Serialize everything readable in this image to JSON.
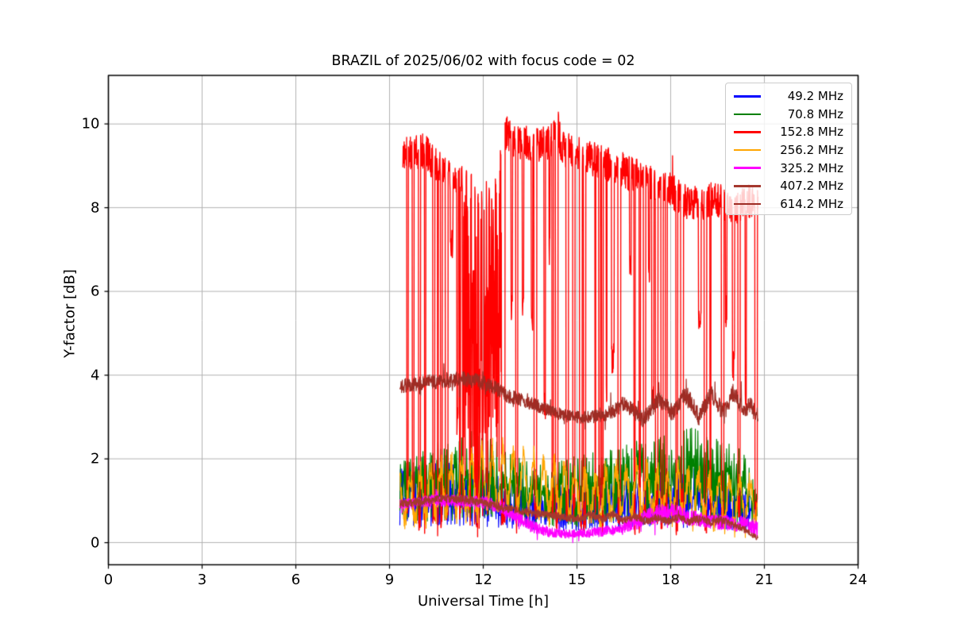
{
  "title": "BRAZIL of 2025/06/02 with focus code = 02",
  "axes": {
    "xlabel": "Universal Time [h]",
    "ylabel": "Y-factor [dB]",
    "xlim": [
      0,
      24
    ],
    "ylim": [
      -0.53,
      11.16
    ],
    "xticks": [
      0,
      3,
      6,
      9,
      12,
      15,
      18,
      21,
      24
    ],
    "yticks": [
      0,
      2,
      4,
      6,
      8,
      10
    ],
    "grid": true,
    "grid_color": "#b2b2b2"
  },
  "legend": {
    "position": "upper right",
    "entries": [
      {
        "label": "49.2 MHz",
        "color": "#0000FF"
      },
      {
        "label": "70.8 MHz",
        "color": "#008000"
      },
      {
        "label": "152.8 MHz",
        "color": "#FF0000"
      },
      {
        "label": "256.2 MHz",
        "color": "#FFA500"
      },
      {
        "label": "325.2 MHz",
        "color": "#FF00FF"
      },
      {
        "label": "407.2 MHz",
        "color": "#A5382E"
      },
      {
        "label": "614.2 MHz",
        "color": "#9E2C24"
      }
    ]
  },
  "chart_data": {
    "type": "line",
    "title": "BRAZIL of 2025/06/02 with focus code = 02",
    "xlabel": "Universal Time [h]",
    "ylabel": "Y-factor [dB]",
    "x_units": "hours UT",
    "data_time_range": [
      9.33,
      20.8
    ],
    "series": [
      {
        "name": "49.2 MHz",
        "color": "#0000FF",
        "style": "spiky",
        "t0": 9.33,
        "t1": 20.75,
        "envelope": {
          "t": [
            9.33,
            9.7,
            10.3,
            11.0,
            11.6,
            12.2,
            12.8,
            13.4,
            14.0,
            14.8,
            15.6,
            16.4,
            17.2,
            18.0,
            18.8,
            19.5,
            20.1,
            20.5,
            20.75
          ],
          "max": [
            1.75,
            1.85,
            1.9,
            1.9,
            1.85,
            1.7,
            1.6,
            1.5,
            1.4,
            1.35,
            1.45,
            1.6,
            1.7,
            1.75,
            1.8,
            1.65,
            1.5,
            1.2,
            0.9
          ],
          "min": [
            0.4,
            0.38,
            0.38,
            0.4,
            0.4,
            0.38,
            0.35,
            0.32,
            0.3,
            0.28,
            0.3,
            0.32,
            0.32,
            0.35,
            0.35,
            0.32,
            0.3,
            0.25,
            0.2
          ]
        }
      },
      {
        "name": "70.8 MHz",
        "color": "#008000",
        "style": "spiky",
        "t0": 9.33,
        "t1": 20.78,
        "envelope": {
          "t": [
            9.33,
            9.6,
            10.1,
            10.5,
            11.0,
            11.5,
            12.0,
            12.4,
            12.9,
            13.5,
            14.0,
            14.6,
            15.2,
            15.8,
            16.4,
            17.0,
            17.6,
            18.2,
            18.8,
            19.3,
            19.8,
            20.3,
            20.6,
            20.78
          ],
          "max": [
            2.0,
            2.05,
            2.2,
            2.45,
            2.6,
            2.7,
            2.55,
            2.45,
            2.1,
            1.9,
            1.85,
            2.0,
            2.1,
            2.2,
            2.3,
            2.45,
            2.55,
            2.7,
            2.75,
            2.6,
            2.4,
            2.2,
            1.6,
            1.1
          ],
          "min": [
            0.55,
            0.5,
            0.5,
            0.5,
            0.5,
            0.55,
            0.6,
            0.6,
            0.5,
            0.4,
            0.35,
            0.35,
            0.4,
            0.45,
            0.45,
            0.5,
            0.5,
            0.55,
            0.55,
            0.5,
            0.45,
            0.4,
            0.35,
            0.3
          ]
        }
      },
      {
        "name": "152.8 MHz",
        "color": "#FF0000",
        "style": "dropout",
        "t0": 9.42,
        "t1": 20.8,
        "description": "Oscillates rapidly between a high envelope (~8.4-10.6 dB) and near 0 dB; nearly solid fill 11.3-12.6 h",
        "top_envelope": {
          "t": [
            9.42,
            9.6,
            9.8,
            10.0,
            10.15,
            10.3,
            10.6,
            11.0,
            11.28,
            11.6,
            11.9,
            12.15,
            12.35,
            12.55,
            12.75,
            12.9,
            13.1,
            13.3,
            13.5,
            13.8,
            14.1,
            14.3,
            14.38,
            14.5,
            14.8,
            15.2,
            15.6,
            16.0,
            16.4,
            16.8,
            17.2,
            17.6,
            18.0,
            18.3,
            18.6,
            19.0,
            19.3,
            19.6,
            19.9,
            20.1,
            20.3,
            20.5,
            20.65,
            20.8
          ],
          "v": [
            9.6,
            9.72,
            9.7,
            9.82,
            9.75,
            9.6,
            9.35,
            9.15,
            9.0,
            8.95,
            8.85,
            8.7,
            9.1,
            9.7,
            10.2,
            10.1,
            9.95,
            10.0,
            9.9,
            9.95,
            10.0,
            10.1,
            10.45,
            9.85,
            9.75,
            9.65,
            9.55,
            9.45,
            9.35,
            9.2,
            9.1,
            9.0,
            8.85,
            8.65,
            8.55,
            8.5,
            8.6,
            8.55,
            8.45,
            8.4,
            8.55,
            8.6,
            8.5,
            8.45
          ]
        },
        "top_band_depth": 0.85,
        "dip_low_range": [
          0.04,
          0.55
        ],
        "partial_dip_range": [
          2.2,
          7.0
        ],
        "dense_fill_interval": [
          11.28,
          12.58
        ],
        "dip_duty": {
          "t": [
            9.42,
            10.3,
            11.0,
            11.28,
            12.58,
            12.9,
            13.4,
            14.2,
            15.0,
            16.0,
            17.0,
            18.0,
            19.0,
            19.8,
            20.8
          ],
          "d": [
            0.6,
            0.5,
            0.55,
            0.98,
            0.98,
            0.7,
            0.6,
            0.62,
            0.6,
            0.58,
            0.55,
            0.52,
            0.5,
            0.55,
            0.6
          ]
        }
      },
      {
        "name": "256.2 MHz",
        "color": "#FFA500",
        "style": "wavy",
        "t0": 9.33,
        "t1": 20.78,
        "wave_period_h": 0.33,
        "noise_half": 0.26,
        "envelope": {
          "t": [
            9.33,
            9.7,
            10.2,
            10.7,
            11.2,
            11.7,
            12.2,
            12.7,
            13.2,
            13.8,
            14.4,
            15.0,
            15.6,
            16.2,
            16.8,
            17.4,
            18.0,
            18.6,
            19.2,
            19.8,
            20.3,
            20.78
          ],
          "center": [
            1.0,
            1.05,
            1.15,
            1.25,
            1.3,
            1.35,
            1.5,
            1.55,
            1.45,
            1.35,
            1.25,
            1.15,
            1.1,
            1.2,
            1.25,
            1.2,
            1.15,
            1.1,
            1.05,
            1.0,
            0.95,
            0.9
          ],
          "amp": [
            0.45,
            0.5,
            0.55,
            0.6,
            0.6,
            0.65,
            0.65,
            0.65,
            0.6,
            0.6,
            0.55,
            0.5,
            0.5,
            0.5,
            0.5,
            0.5,
            0.5,
            0.5,
            0.5,
            0.5,
            0.5,
            0.45
          ]
        }
      },
      {
        "name": "325.2 MHz",
        "color": "#FF00FF",
        "style": "band",
        "t0": 9.33,
        "t1": 20.78,
        "envelope": {
          "t": [
            9.33,
            9.8,
            10.4,
            11.0,
            11.6,
            12.1,
            12.5,
            12.9,
            13.3,
            13.7,
            14.1,
            14.6,
            15.1,
            15.6,
            16.1,
            16.6,
            17.1,
            17.6,
            18.1,
            18.6,
            19.1,
            19.6,
            20.1,
            20.5,
            20.78
          ],
          "center": [
            0.92,
            0.95,
            1.0,
            1.0,
            0.98,
            0.95,
            0.85,
            0.7,
            0.5,
            0.35,
            0.25,
            0.2,
            0.22,
            0.25,
            0.3,
            0.4,
            0.55,
            0.7,
            0.72,
            0.6,
            0.52,
            0.48,
            0.45,
            0.4,
            0.32
          ],
          "hw": [
            0.12,
            0.13,
            0.14,
            0.14,
            0.14,
            0.15,
            0.17,
            0.18,
            0.18,
            0.15,
            0.12,
            0.1,
            0.1,
            0.12,
            0.13,
            0.15,
            0.2,
            0.22,
            0.22,
            0.2,
            0.18,
            0.18,
            0.18,
            0.2,
            0.22
          ]
        },
        "spike_p": 0.03
      },
      {
        "name": "407.2 MHz",
        "color": "#A5382E",
        "style": "band",
        "t0": 9.33,
        "t1": 20.8,
        "envelope": {
          "t": [
            9.33,
            9.7,
            10.2,
            10.7,
            11.2,
            11.7,
            12.2,
            12.7,
            13.2,
            13.7,
            14.2,
            14.7,
            15.1,
            15.45,
            15.8,
            16.15,
            16.5,
            16.85,
            17.2,
            17.55,
            17.9,
            18.25,
            18.6,
            18.95,
            19.3,
            19.65,
            20.0,
            20.3,
            20.55,
            20.8
          ],
          "center": [
            0.92,
            0.95,
            1.02,
            1.05,
            1.03,
            1.0,
            0.92,
            0.83,
            0.75,
            0.7,
            0.65,
            0.6,
            0.57,
            0.68,
            0.55,
            0.68,
            0.52,
            0.63,
            0.5,
            0.62,
            0.5,
            0.6,
            0.5,
            0.58,
            0.48,
            0.55,
            0.42,
            0.35,
            0.22,
            0.1
          ],
          "hw": [
            0.1,
            0.1,
            0.1,
            0.1,
            0.1,
            0.1,
            0.1,
            0.1,
            0.09,
            0.09,
            0.09,
            0.09,
            0.09,
            0.09,
            0.09,
            0.09,
            0.09,
            0.09,
            0.09,
            0.09,
            0.09,
            0.09,
            0.09,
            0.09,
            0.09,
            0.09,
            0.09,
            0.08,
            0.07,
            0.06
          ],
          "comment": "slowly declining band with ~0.35 h wavelets; drops to ~0.1 dB at end"
        },
        "spike_p": 0.02
      },
      {
        "name": "614.2 MHz",
        "color": "#9E2C24",
        "style": "band",
        "t0": 9.33,
        "t1": 20.8,
        "envelope": {
          "t": [
            9.33,
            9.5,
            9.9,
            10.3,
            10.7,
            11.1,
            11.4,
            11.8,
            12.1,
            12.45,
            12.8,
            13.1,
            13.45,
            13.8,
            14.15,
            14.5,
            14.9,
            15.3,
            15.7,
            16.05,
            16.2,
            16.5,
            16.85,
            17.1,
            17.4,
            17.65,
            18.05,
            18.5,
            18.9,
            19.3,
            19.7,
            20.0,
            20.35,
            20.55,
            20.8
          ],
          "center": [
            3.7,
            3.75,
            3.8,
            3.85,
            3.85,
            3.9,
            3.9,
            3.85,
            3.8,
            3.65,
            3.5,
            3.45,
            3.35,
            3.25,
            3.15,
            3.05,
            3.0,
            3.0,
            3.05,
            3.1,
            3.15,
            3.35,
            3.1,
            2.95,
            3.2,
            3.45,
            3.1,
            3.55,
            3.0,
            3.55,
            3.1,
            3.6,
            3.1,
            3.3,
            3.05
          ],
          "hw": [
            0.17,
            0.17,
            0.17,
            0.17,
            0.18,
            0.18,
            0.18,
            0.18,
            0.18,
            0.18,
            0.17,
            0.16,
            0.16,
            0.15,
            0.15,
            0.15,
            0.15,
            0.16,
            0.17,
            0.18,
            0.18,
            0.19,
            0.19,
            0.19,
            0.2,
            0.2,
            0.2,
            0.21,
            0.21,
            0.21,
            0.21,
            0.22,
            0.22,
            0.22,
            0.22
          ],
          "comment": "thick band ~3.7-3.9 dB until 12 h, declines to ~3.0 by 15 h, then oscillates 3.0-3.6 dB"
        },
        "spike_p": 0.05
      }
    ]
  }
}
